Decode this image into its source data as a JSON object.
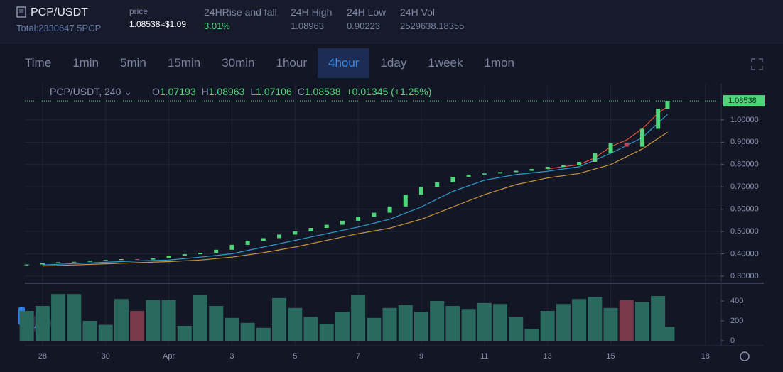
{
  "header": {
    "pair": "PCP/USDT",
    "total": "Total:2330647.5PCP",
    "stats": [
      {
        "label": "price",
        "value": "1.08538≈$1.09"
      },
      {
        "label": "24HRise and fall",
        "value": "3.01%"
      },
      {
        "label": "24H High",
        "value": "1.08963"
      },
      {
        "label": "24H Low",
        "value": "0.90223"
      },
      {
        "label": "24H Vol",
        "value": "2529638.18355"
      }
    ]
  },
  "timeframes": {
    "items": [
      "Time",
      "1min",
      "5min",
      "15min",
      "30min",
      "1hour",
      "4hour",
      "1day",
      "1week",
      "1mon"
    ],
    "active": "4hour"
  },
  "legend": {
    "symbol": "PCP/USDT, 240",
    "fields": [
      {
        "key": "O",
        "value": "1.07193"
      },
      {
        "key": "H",
        "value": "1.08963"
      },
      {
        "key": "L",
        "value": "1.07106"
      },
      {
        "key": "C",
        "value": "1.08538"
      }
    ],
    "change": "+0.01345 (+1.25%)"
  },
  "chart": {
    "type": "candlestick",
    "up_color": "#4fd67a",
    "down_color": "#c2455a",
    "volume_up_color": "#2a6a5e",
    "volume_down_color": "#7a3a4c",
    "x": [
      -0.5,
      0,
      0.5,
      1,
      1.5,
      2,
      2.5,
      3,
      3.5,
      4,
      4.5,
      5,
      5.5,
      6,
      6.5,
      7,
      7.5,
      8,
      8.5,
      9,
      9.5,
      10,
      10.5,
      11,
      11.5,
      12,
      12.5,
      13,
      13.5,
      14,
      14.5,
      15,
      15.5,
      16,
      16.5,
      17,
      17.5,
      18,
      18.5,
      19,
      19.5,
      19.8
    ],
    "open": [
      0.348,
      0.352,
      0.358,
      0.362,
      0.364,
      0.368,
      0.372,
      0.376,
      0.374,
      0.38,
      0.392,
      0.398,
      0.404,
      0.418,
      0.44,
      0.458,
      0.47,
      0.486,
      0.5,
      0.516,
      0.53,
      0.548,
      0.566,
      0.584,
      0.612,
      0.665,
      0.7,
      0.72,
      0.745,
      0.755,
      0.76,
      0.766,
      0.772,
      0.78,
      0.79,
      0.796,
      0.812,
      0.85,
      0.895,
      0.88,
      0.96,
      1.05
    ],
    "close": [
      0.352,
      0.358,
      0.362,
      0.364,
      0.368,
      0.372,
      0.376,
      0.374,
      0.38,
      0.392,
      0.398,
      0.404,
      0.418,
      0.44,
      0.458,
      0.47,
      0.486,
      0.5,
      0.516,
      0.53,
      0.548,
      0.566,
      0.584,
      0.612,
      0.665,
      0.7,
      0.72,
      0.745,
      0.755,
      0.76,
      0.766,
      0.772,
      0.78,
      0.79,
      0.796,
      0.812,
      0.85,
      0.895,
      0.88,
      0.96,
      1.05,
      1.08538
    ],
    "volume": [
      300,
      350,
      470,
      470,
      200,
      160,
      420,
      300,
      410,
      410,
      150,
      460,
      350,
      230,
      180,
      130,
      430,
      330,
      240,
      170,
      290,
      460,
      230,
      330,
      360,
      290,
      400,
      350,
      320,
      380,
      370,
      240,
      120,
      300,
      370,
      420,
      440,
      330,
      410,
      390,
      450,
      140
    ],
    "ma": [
      {
        "color": "#e0533a",
        "x": [
          16,
          16.5,
          17,
          17.5,
          18,
          18.5,
          19,
          19.5,
          19.8
        ],
        "values": [
          0.78,
          0.79,
          0.8,
          0.83,
          0.88,
          0.91,
          0.96,
          1.03,
          1.06
        ]
      },
      {
        "color": "#2f9bd0",
        "x": [
          0,
          1,
          2,
          3,
          4,
          5,
          6,
          7,
          8,
          9,
          10,
          11,
          12,
          13,
          14,
          15,
          16,
          17,
          18,
          19,
          19.8
        ],
        "values": [
          0.35,
          0.356,
          0.362,
          0.368,
          0.372,
          0.385,
          0.4,
          0.43,
          0.46,
          0.49,
          0.52,
          0.555,
          0.61,
          0.68,
          0.73,
          0.755,
          0.77,
          0.79,
          0.85,
          0.92,
          1.025
        ]
      },
      {
        "color": "#c8963c",
        "x": [
          0,
          1,
          2,
          3,
          4,
          5,
          6,
          7,
          8,
          9,
          10,
          11,
          12,
          13,
          14,
          15,
          16,
          17,
          18,
          19,
          19.8
        ],
        "values": [
          0.345,
          0.35,
          0.355,
          0.36,
          0.365,
          0.372,
          0.385,
          0.405,
          0.43,
          0.46,
          0.49,
          0.515,
          0.555,
          0.61,
          0.665,
          0.71,
          0.74,
          0.76,
          0.8,
          0.87,
          0.945
        ]
      }
    ],
    "xlim": [
      -0.56,
      21.5
    ],
    "xticks": [
      {
        "value": 0,
        "label": "28"
      },
      {
        "value": 2,
        "label": "30"
      },
      {
        "value": 4,
        "label": "Apr"
      },
      {
        "value": 6,
        "label": "3"
      },
      {
        "value": 8,
        "label": "5"
      },
      {
        "value": 10,
        "label": "7"
      },
      {
        "value": 12,
        "label": "9"
      },
      {
        "value": 14,
        "label": "11"
      },
      {
        "value": 16,
        "label": "13"
      },
      {
        "value": 18,
        "label": "15"
      },
      {
        "value": 21,
        "label": "18"
      }
    ],
    "ylim": [
      0.271,
      1.162
    ],
    "yticks": [
      {
        "value": 0.3,
        "label": "0.30000"
      },
      {
        "value": 0.4,
        "label": "0.40000"
      },
      {
        "value": 0.5,
        "label": "0.50000"
      },
      {
        "value": 0.6,
        "label": "0.60000"
      },
      {
        "value": 0.7,
        "label": "0.70000"
      },
      {
        "value": 0.8,
        "label": "0.80000"
      },
      {
        "value": 0.9,
        "label": "0.90000"
      },
      {
        "value": 1.0,
        "label": "1.00000"
      }
    ],
    "volume_ylim": [
      -50,
      536
    ],
    "volume_yticks": [
      0,
      200,
      400
    ],
    "grid": true
  }
}
